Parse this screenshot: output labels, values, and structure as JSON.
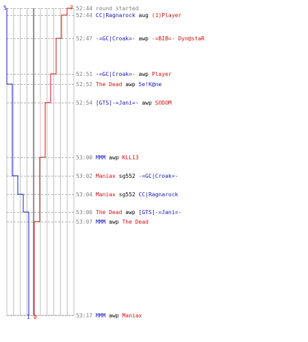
{
  "score": {
    "blue_start": "5",
    "red_end": "7",
    "blue_end": "1",
    "red_start": "0"
  },
  "colors": {
    "blue": "#1414b4",
    "red": "#cc1010",
    "grid": "#bcbcbc",
    "time": "#7d7d7d"
  },
  "events": [
    {
      "time": "52:44",
      "text": "round started",
      "actor": "",
      "verb": "",
      "target": "",
      "team": "sys"
    },
    {
      "time": "52:44",
      "actor": "CC|Ragnarock",
      "verb": "aug",
      "target": "(1)Player",
      "team": "blue",
      "target_team": "red"
    },
    {
      "time": "52:47",
      "actor": "-=GC|Croak=-",
      "verb": "awp",
      "target": "-=BIB=- Dyn@staR",
      "team": "blue",
      "target_team": "red"
    },
    {
      "time": "52:51",
      "actor": "-=GC|Croak=-",
      "verb": "awp",
      "target": "Player",
      "team": "blue",
      "target_team": "red"
    },
    {
      "time": "52:52",
      "actor": "The Dead",
      "verb": "awp",
      "target": "5e!K@ne",
      "team": "red",
      "target_team": "blue"
    },
    {
      "time": "52:54",
      "actor": "[GTS]-=Jani=-",
      "verb": "awp",
      "target": "SODOM",
      "team": "blue",
      "target_team": "red"
    },
    {
      "time": "53:00",
      "actor": "MMM",
      "verb": "awp",
      "target": "KLL13",
      "team": "blue",
      "target_team": "red"
    },
    {
      "time": "53:02",
      "actor": "Maniax",
      "verb": "sg552",
      "target": "-=GC|Croak=-",
      "team": "red",
      "target_team": "blue"
    },
    {
      "time": "53:04",
      "actor": "Maniax",
      "verb": "sg552",
      "target": "CC|Ragnarock",
      "team": "red",
      "target_team": "blue"
    },
    {
      "time": "53:06",
      "actor": "The Dead",
      "verb": "awp",
      "target": "[GTS]-=Jani=-",
      "team": "red",
      "target_team": "blue"
    },
    {
      "time": "53:07",
      "actor": "MMM",
      "verb": "awp",
      "target": "The Dead",
      "team": "blue",
      "target_team": "red"
    },
    {
      "time": "53:17",
      "actor": "MMM",
      "verb": "awp",
      "target": "Maniax",
      "team": "blue",
      "target_team": "red"
    }
  ]
}
